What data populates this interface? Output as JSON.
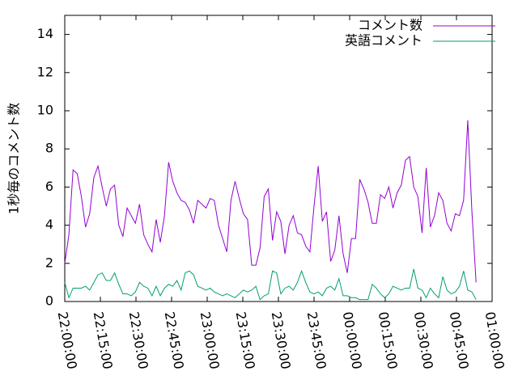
{
  "chart_data": {
    "type": "line",
    "ylabel": "1秒毎のコメント数",
    "xlim": [
      "22:00:00",
      "01:00:00"
    ],
    "xticks": [
      "22:00:00",
      "22:15:00",
      "22:30:00",
      "22:45:00",
      "23:00:00",
      "23:15:00",
      "23:30:00",
      "23:45:00",
      "00:00:00",
      "00:15:00",
      "00:30:00",
      "00:45:00",
      "01:00:00"
    ],
    "ylim": [
      0,
      15
    ],
    "yticks": [
      0,
      2,
      4,
      6,
      8,
      10,
      12,
      14
    ],
    "legend": "top-right",
    "x": [
      "22:00:00",
      "22:01:45",
      "22:03:30",
      "22:05:15",
      "22:07:00",
      "22:08:45",
      "22:10:30",
      "22:12:15",
      "22:14:00",
      "22:15:45",
      "22:17:30",
      "22:19:15",
      "22:21:00",
      "22:22:45",
      "22:24:30",
      "22:26:15",
      "22:28:00",
      "22:29:45",
      "22:31:30",
      "22:33:15",
      "22:35:00",
      "22:36:45",
      "22:38:30",
      "22:40:15",
      "22:42:00",
      "22:43:45",
      "22:45:30",
      "22:47:15",
      "22:49:00",
      "22:50:45",
      "22:52:30",
      "22:54:15",
      "22:56:00",
      "22:57:45",
      "22:59:30",
      "23:01:15",
      "23:03:00",
      "23:04:45",
      "23:06:30",
      "23:08:15",
      "23:10:00",
      "23:11:45",
      "23:13:30",
      "23:15:15",
      "23:17:00",
      "23:18:45",
      "23:20:30",
      "23:22:15",
      "23:24:00",
      "23:25:45",
      "23:27:30",
      "23:29:15",
      "23:31:00",
      "23:32:45",
      "23:34:30",
      "23:36:15",
      "23:38:00",
      "23:39:45",
      "23:41:30",
      "23:43:15",
      "23:45:00",
      "23:46:45",
      "23:48:30",
      "23:50:15",
      "23:52:00",
      "23:53:45",
      "23:55:30",
      "23:57:15",
      "23:59:00",
      "00:00:45",
      "00:02:30",
      "00:04:15",
      "00:06:00",
      "00:07:45",
      "00:09:30",
      "00:11:15",
      "00:13:00",
      "00:14:45",
      "00:16:30",
      "00:18:15",
      "00:20:00",
      "00:21:45",
      "00:23:30",
      "00:25:15",
      "00:27:00",
      "00:28:45",
      "00:30:30",
      "00:32:15",
      "00:34:00",
      "00:35:45",
      "00:37:30",
      "00:39:15",
      "00:41:00",
      "00:42:45",
      "00:44:30",
      "00:46:15",
      "00:48:00",
      "00:49:45",
      "00:51:30",
      "00:53:15"
    ],
    "series": [
      {
        "name": "コメント数",
        "color": "#9400d3",
        "values": [
          2.0,
          3.5,
          6.9,
          6.7,
          5.5,
          3.9,
          4.6,
          6.5,
          7.1,
          6.0,
          5.0,
          5.9,
          6.1,
          4.0,
          3.4,
          4.9,
          4.5,
          4.1,
          5.1,
          3.5,
          3.0,
          2.6,
          4.3,
          3.1,
          4.5,
          7.3,
          6.3,
          5.7,
          5.3,
          5.2,
          4.8,
          4.1,
          5.3,
          5.1,
          4.9,
          5.4,
          5.3,
          4.0,
          3.3,
          2.6,
          5.3,
          6.3,
          5.4,
          4.6,
          4.3,
          1.9,
          1.9,
          2.8,
          5.5,
          5.9,
          3.2,
          4.7,
          4.2,
          2.5,
          4.0,
          4.5,
          3.6,
          3.5,
          2.9,
          2.6,
          5.0,
          7.1,
          4.2,
          4.7,
          2.1,
          2.7,
          4.5,
          2.5,
          1.5,
          3.3,
          3.3,
          6.4,
          5.9,
          5.2,
          4.1,
          4.1,
          5.6,
          5.4,
          6.0,
          4.9,
          5.7,
          6.1,
          7.4,
          7.6,
          6.0,
          5.5,
          3.6,
          7.0,
          3.9,
          4.5,
          5.7,
          5.3,
          4.1,
          3.7,
          4.6,
          4.5,
          5.3,
          9.5,
          4.7,
          1.0
        ]
      },
      {
        "name": "英語コメント",
        "color": "#009e73",
        "values": [
          1.0,
          0.2,
          0.7,
          0.7,
          0.7,
          0.8,
          0.6,
          1.0,
          1.4,
          1.5,
          1.1,
          1.1,
          1.5,
          0.9,
          0.4,
          0.4,
          0.3,
          0.5,
          1.0,
          0.8,
          0.7,
          0.3,
          0.8,
          0.3,
          0.7,
          0.9,
          0.8,
          1.1,
          0.6,
          1.5,
          1.6,
          1.4,
          0.8,
          0.7,
          0.6,
          0.7,
          0.5,
          0.4,
          0.3,
          0.4,
          0.3,
          0.2,
          0.4,
          0.6,
          0.5,
          0.6,
          0.8,
          0.1,
          0.3,
          0.4,
          1.6,
          1.5,
          0.4,
          0.7,
          0.8,
          0.6,
          1.0,
          1.6,
          1.0,
          0.5,
          0.4,
          0.5,
          0.3,
          0.7,
          0.8,
          0.6,
          1.2,
          0.3,
          0.3,
          0.2,
          0.2,
          0.1,
          0.1,
          0.1,
          0.9,
          0.7,
          0.4,
          0.2,
          0.4,
          0.8,
          0.7,
          0.6,
          0.7,
          0.7,
          1.7,
          0.7,
          0.6,
          0.2,
          0.7,
          0.4,
          0.2,
          1.3,
          0.6,
          0.4,
          0.5,
          0.8,
          1.6,
          0.6,
          0.5,
          0.1
        ]
      }
    ]
  }
}
